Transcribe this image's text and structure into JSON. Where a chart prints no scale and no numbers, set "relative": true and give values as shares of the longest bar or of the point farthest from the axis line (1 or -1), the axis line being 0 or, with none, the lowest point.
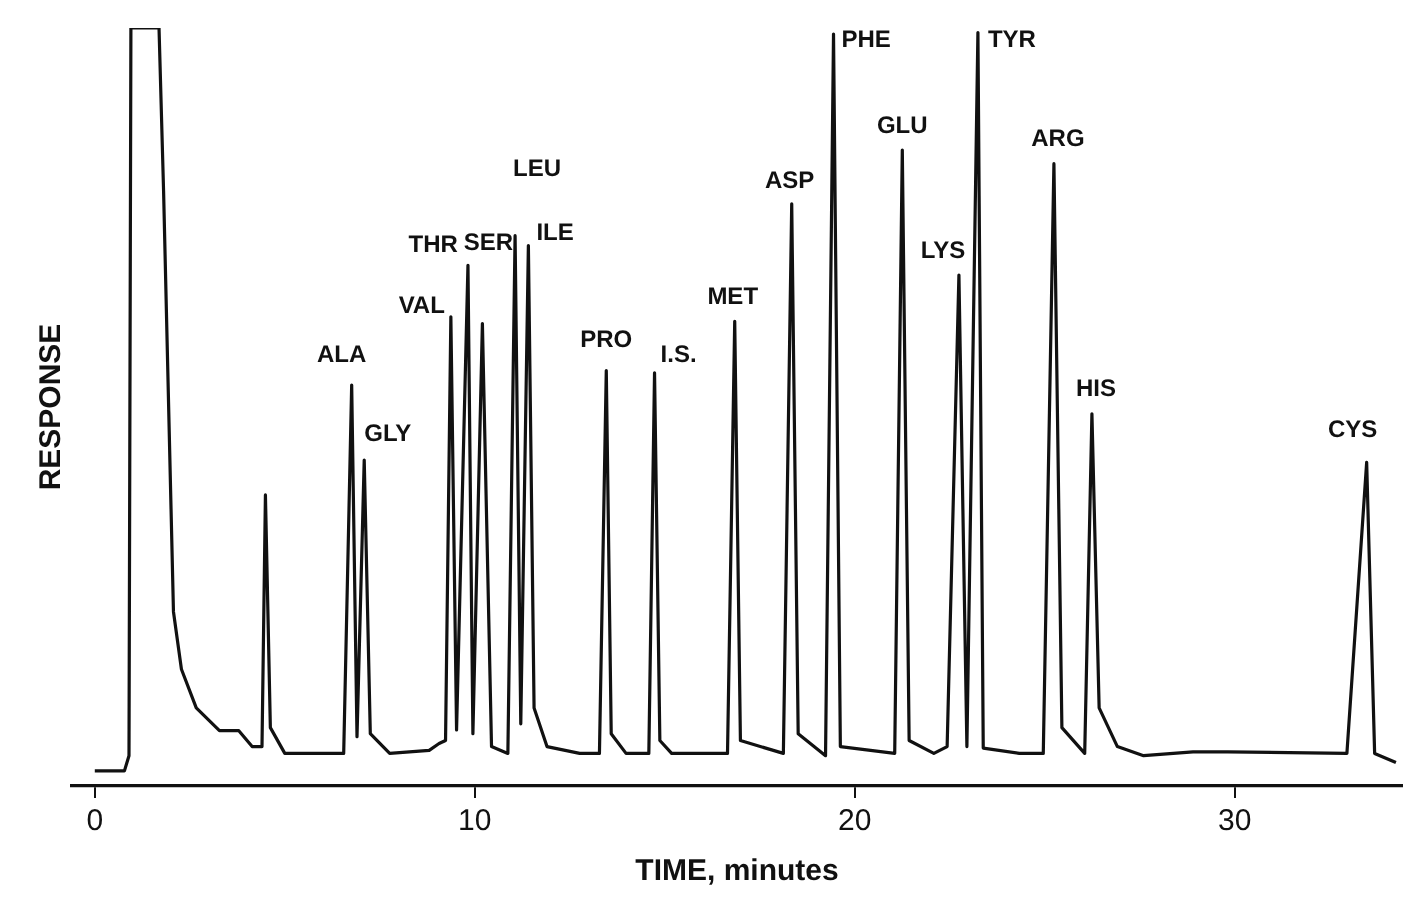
{
  "chart_data": {
    "type": "line",
    "xlabel": "TIME, minutes",
    "ylabel": "RESPONSE",
    "relative": true,
    "xlim": [
      -0.6,
      34.4
    ],
    "xticks": [
      0,
      10,
      20,
      30
    ],
    "tick_labels": "x",
    "grid": false,
    "legend": false,
    "marker": "none",
    "line_style": "solid",
    "series": [
      {
        "color": "#111111",
        "x": [
          0,
          0.78,
          0.9,
          0.95,
          1.69,
          1.81,
          2.07,
          2.28,
          2.67,
          3.28,
          3.79,
          4.14,
          4.4,
          4.49,
          4.62,
          5.0,
          6.55,
          6.76,
          6.9,
          7.09,
          7.25,
          7.76,
          8.8,
          9.06,
          9.23,
          9.37,
          9.52,
          9.82,
          9.95,
          10.2,
          10.44,
          10.87,
          11.06,
          11.21,
          11.41,
          11.56,
          11.9,
          12.76,
          13.28,
          13.46,
          13.59,
          13.98,
          14.58,
          14.73,
          14.87,
          15.18,
          16.65,
          16.84,
          16.99,
          18.12,
          18.34,
          18.51,
          19.23,
          19.44,
          19.62,
          21.05,
          21.25,
          21.43,
          22.08,
          22.43,
          22.74,
          22.95,
          23.24,
          23.38,
          24.33,
          24.96,
          25.24,
          25.45,
          26.05,
          26.24,
          26.43,
          26.91,
          27.6,
          28.9,
          29.81,
          32.95,
          33.47,
          33.68,
          34.24
        ],
        "values": [
          0.02,
          0.02,
          0.04,
          1.0,
          1.0,
          0.785,
          0.23,
          0.154,
          0.103,
          0.073,
          0.073,
          0.052,
          0.052,
          0.384,
          0.077,
          0.043,
          0.043,
          0.529,
          0.065,
          0.43,
          0.069,
          0.043,
          0.047,
          0.056,
          0.06,
          0.619,
          0.074,
          0.687,
          0.069,
          0.61,
          0.052,
          0.043,
          0.726,
          0.082,
          0.713,
          0.103,
          0.052,
          0.043,
          0.043,
          0.548,
          0.069,
          0.043,
          0.043,
          0.545,
          0.06,
          0.043,
          0.043,
          0.613,
          0.06,
          0.043,
          0.768,
          0.069,
          0.04,
          0.992,
          0.052,
          0.043,
          0.839,
          0.06,
          0.043,
          0.052,
          0.674,
          0.052,
          0.994,
          0.05,
          0.043,
          0.043,
          0.821,
          0.077,
          0.043,
          0.491,
          0.103,
          0.052,
          0.04,
          0.045,
          0.045,
          0.043,
          0.427,
          0.043,
          0.031
        ]
      }
    ],
    "annotations": [
      {
        "text": "ALA",
        "x": 6.76,
        "y": 0.529
      },
      {
        "text": "GLY",
        "x": 7.09,
        "y": 0.43
      },
      {
        "text": "VAL",
        "x": 9.37,
        "y": 0.619
      },
      {
        "text": "THR",
        "x": 9.82,
        "y": 0.687
      },
      {
        "text": "SER",
        "x": 10.2,
        "y": 0.61
      },
      {
        "text": "LEU",
        "x": 11.06,
        "y": 0.726
      },
      {
        "text": "ILE",
        "x": 11.41,
        "y": 0.713
      },
      {
        "text": "PRO",
        "x": 13.46,
        "y": 0.548
      },
      {
        "text": "I.S.",
        "x": 14.73,
        "y": 0.545
      },
      {
        "text": "MET",
        "x": 16.84,
        "y": 0.613
      },
      {
        "text": "ASP",
        "x": 18.34,
        "y": 0.768
      },
      {
        "text": "PHE",
        "x": 19.44,
        "y": 0.992
      },
      {
        "text": "GLU",
        "x": 21.25,
        "y": 0.839
      },
      {
        "text": "LYS",
        "x": 22.74,
        "y": 0.674
      },
      {
        "text": "TYR",
        "x": 23.24,
        "y": 0.994
      },
      {
        "text": "ARG",
        "x": 25.24,
        "y": 0.821
      },
      {
        "text": "HIS",
        "x": 26.24,
        "y": 0.491
      },
      {
        "text": "CYS",
        "x": 33.47,
        "y": 0.427
      }
    ]
  }
}
